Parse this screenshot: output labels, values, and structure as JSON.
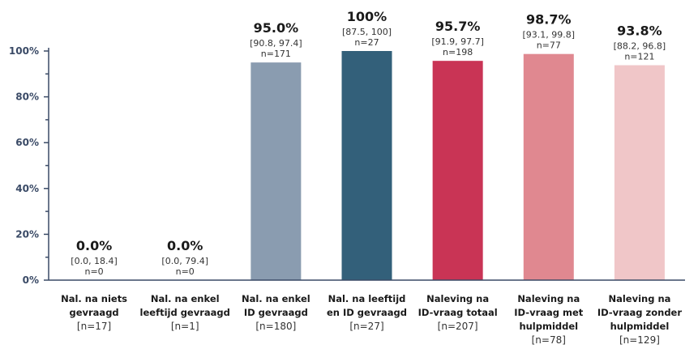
{
  "chart_data": {
    "type": "bar",
    "title": "",
    "xlabel": "",
    "ylabel": "",
    "ylim": [
      0,
      100
    ],
    "yticks": [
      "0%",
      "20%",
      "40%",
      "60%",
      "80%",
      "100%"
    ],
    "grid": false,
    "categories": [
      {
        "lines": [
          "Nal. na niets",
          "gevraagd"
        ],
        "n_label": "[n=17]"
      },
      {
        "lines": [
          "Nal. na enkel",
          "leeftijd gevraagd"
        ],
        "n_label": "[n=1]"
      },
      {
        "lines": [
          "Nal. na enkel",
          "ID gevraagd"
        ],
        "n_label": "[n=180]"
      },
      {
        "lines": [
          "Nal. na leeftijd",
          "en ID gevraagd"
        ],
        "n_label": "[n=27]"
      },
      {
        "lines": [
          "Naleving na",
          "ID-vraag totaal"
        ],
        "n_label": "[n=207]"
      },
      {
        "lines": [
          "Naleving na",
          "ID-vraag met",
          "hulpmiddel"
        ],
        "n_label": "[n=78]"
      },
      {
        "lines": [
          "Naleving na",
          "ID-vraag zonder",
          "hulpmiddel"
        ],
        "n_label": "[n=129]"
      }
    ],
    "values": [
      0.0,
      0.0,
      95.0,
      100,
      95.7,
      98.7,
      93.8
    ],
    "value_labels": [
      "0.0%",
      "0.0%",
      "95.0%",
      "100%",
      "95.7%",
      "98.7%",
      "93.8%"
    ],
    "ci_labels": [
      "[0.0, 18.4]",
      "[0.0, 79.4]",
      "[90.8, 97.4]",
      "[87.5, 100]",
      "[91.9, 97.7]",
      "[93.1, 99.8]",
      "[88.2, 96.8]"
    ],
    "n_labels": [
      "n=0",
      "n=0",
      "n=171",
      "n=27",
      "n=198",
      "n=77",
      "n=121"
    ],
    "colors": [
      "#8a9cb0",
      "#8a9cb0",
      "#8a9cb0",
      "#33607a",
      "#c93455",
      "#e08890",
      "#f0c6c8"
    ]
  }
}
